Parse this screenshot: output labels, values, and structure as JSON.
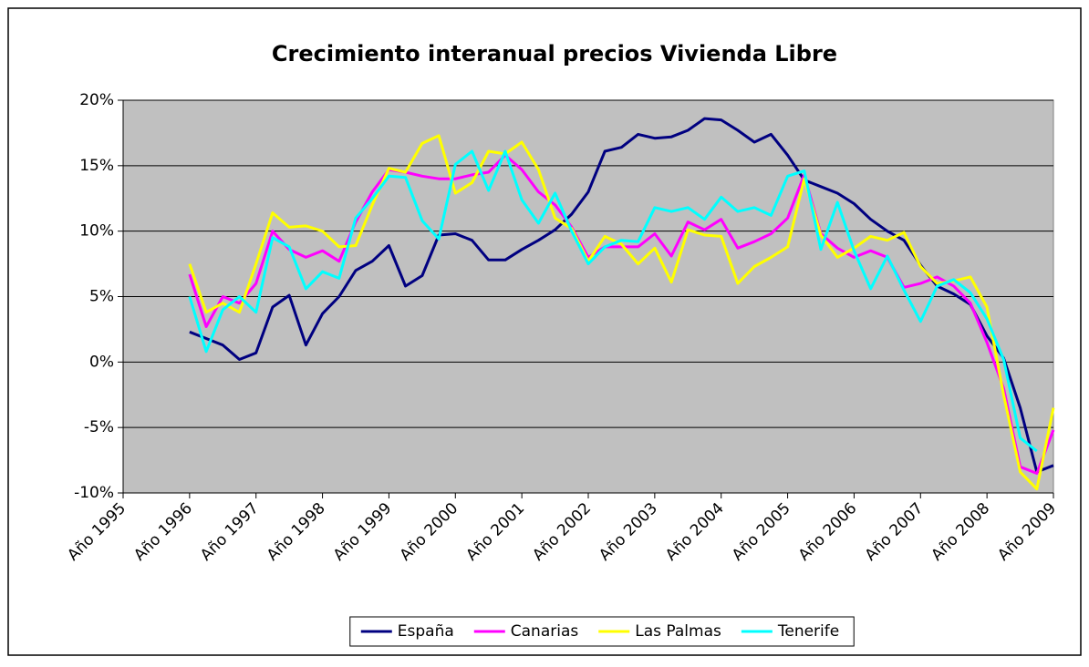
{
  "chart_data": {
    "type": "line",
    "title": "Crecimiento interanual precios Vivienda Libre",
    "categories": [
      "Año 1995",
      null,
      null,
      null,
      "Año 1996",
      null,
      null,
      null,
      "Año 1997",
      null,
      null,
      null,
      "Año 1998",
      null,
      null,
      null,
      "Año 1999",
      null,
      null,
      null,
      "Año 2000",
      null,
      null,
      null,
      "Año 2001",
      null,
      null,
      null,
      "Año 2002",
      null,
      null,
      null,
      "Año 2003",
      null,
      null,
      null,
      "Año 2004",
      null,
      null,
      null,
      "Año 2005",
      null,
      null,
      null,
      "Año 2006",
      null,
      null,
      null,
      "Año 2007",
      null,
      null,
      null,
      "Año 2008",
      null,
      null,
      null,
      "Año 2009"
    ],
    "series": [
      {
        "name": "España",
        "color": "#000080",
        "values": [
          null,
          null,
          null,
          null,
          2.3,
          1.8,
          1.3,
          0.2,
          0.7,
          4.2,
          5.1,
          1.3,
          3.7,
          5.0,
          7.0,
          7.7,
          8.9,
          5.8,
          6.6,
          9.7,
          9.8,
          9.3,
          7.8,
          7.8,
          8.6,
          9.3,
          10.1,
          11.3,
          13.0,
          16.1,
          16.4,
          17.4,
          17.1,
          17.2,
          17.7,
          18.6,
          18.5,
          17.7,
          16.8,
          17.4,
          15.8,
          13.9,
          13.4,
          12.9,
          12.1,
          10.9,
          10.0,
          9.3,
          7.4,
          5.8,
          5.2,
          4.4,
          2.0,
          0.3,
          -3.5,
          -8.4,
          -7.9
        ]
      },
      {
        "name": "Canarias",
        "color": "#ff00ff",
        "values": [
          null,
          null,
          null,
          null,
          6.7,
          2.7,
          5.0,
          4.5,
          6.0,
          10.0,
          8.6,
          8.0,
          8.5,
          7.7,
          10.7,
          13.0,
          14.7,
          14.5,
          14.2,
          14.0,
          14.0,
          14.3,
          14.5,
          15.8,
          14.7,
          13.0,
          12.0,
          10.3,
          8.0,
          8.8,
          8.8,
          8.8,
          9.8,
          8.1,
          10.7,
          10.1,
          10.9,
          8.7,
          9.2,
          9.8,
          11.0,
          14.3,
          9.8,
          8.7,
          8.0,
          8.5,
          8.0,
          5.7,
          6.0,
          6.5,
          5.8,
          4.5,
          1.5,
          -2.0,
          -8.0,
          -8.5,
          -5.2
        ]
      },
      {
        "name": "Las Palmas",
        "color": "#ffff00",
        "values": [
          null,
          null,
          null,
          null,
          7.5,
          3.8,
          4.5,
          3.8,
          7.5,
          11.4,
          10.3,
          10.4,
          10.0,
          8.8,
          8.9,
          12.0,
          14.8,
          14.5,
          16.7,
          17.3,
          12.9,
          13.7,
          16.1,
          15.9,
          16.8,
          14.7,
          11.0,
          10.2,
          7.7,
          9.6,
          9.0,
          7.5,
          8.7,
          6.1,
          10.1,
          9.7,
          9.6,
          6.0,
          7.3,
          8.0,
          8.8,
          14.0,
          9.7,
          8.0,
          8.7,
          9.6,
          9.3,
          9.9,
          7.3,
          6.0,
          6.2,
          6.5,
          4.2,
          -2.5,
          -8.4,
          -9.7,
          -3.5
        ]
      },
      {
        "name": "Tenerife",
        "color": "#00ffff",
        "values": [
          null,
          null,
          null,
          null,
          5.0,
          0.8,
          4.0,
          5.0,
          3.8,
          9.5,
          8.8,
          5.6,
          6.9,
          6.4,
          11.0,
          12.5,
          14.2,
          14.1,
          10.8,
          9.4,
          15.1,
          16.1,
          13.1,
          16.1,
          12.4,
          10.6,
          12.9,
          10.0,
          7.5,
          8.8,
          9.3,
          9.2,
          11.8,
          11.5,
          11.8,
          10.9,
          12.6,
          11.5,
          11.8,
          11.2,
          14.2,
          14.6,
          8.6,
          12.2,
          8.5,
          5.6,
          8.1,
          5.5,
          3.1,
          5.8,
          6.3,
          5.3,
          3.3,
          0.2,
          -5.8,
          -6.8,
          null
        ]
      }
    ],
    "ylim": [
      -10,
      20
    ],
    "yticks": [
      {
        "value": -10,
        "label": "-10%"
      },
      {
        "value": -5,
        "label": "-5%"
      },
      {
        "value": 0,
        "label": "0%"
      },
      {
        "value": 5,
        "label": "5%"
      },
      {
        "value": 10,
        "label": "10%"
      },
      {
        "value": 15,
        "label": "15%"
      },
      {
        "value": 20,
        "label": "20%"
      }
    ],
    "grid": true,
    "legend": "bottom"
  }
}
